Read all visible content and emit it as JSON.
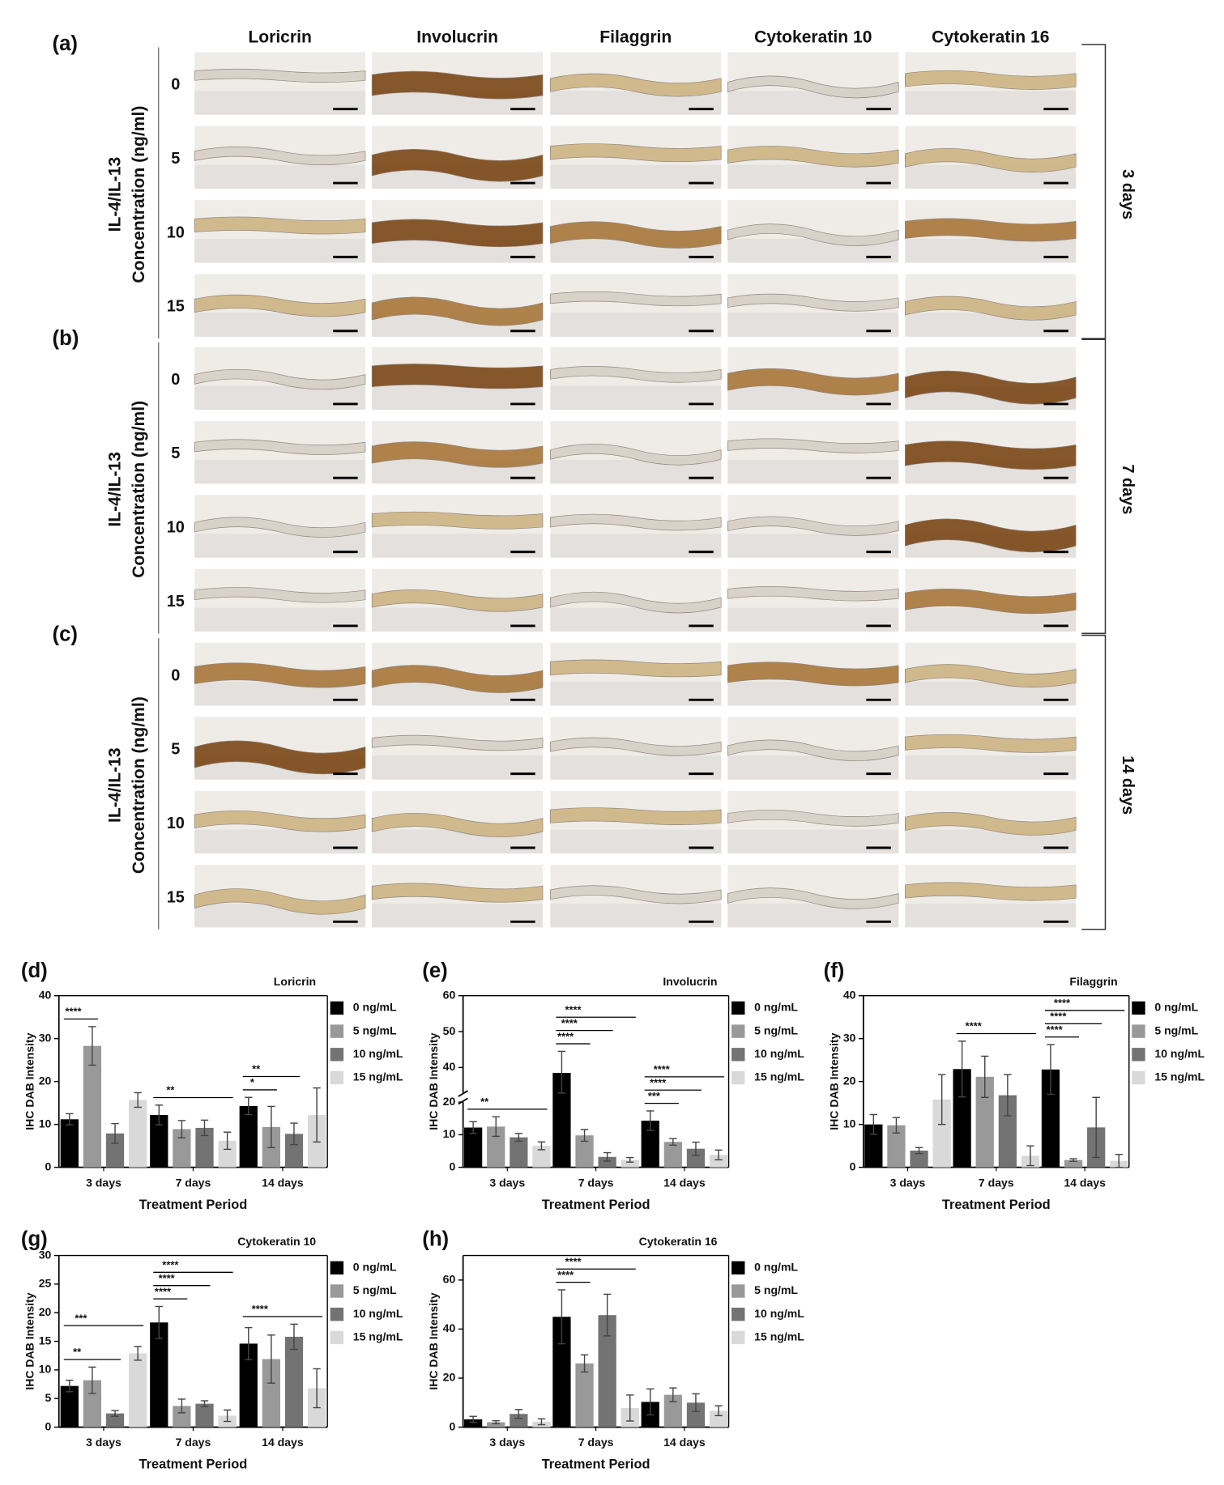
{
  "figure": {
    "panels": [
      {
        "label": "(a)",
        "time": "3 days"
      },
      {
        "label": "(b)",
        "time": "7 days"
      },
      {
        "label": "(c)",
        "time": "14 days"
      }
    ],
    "columns": [
      "Loricrin",
      "Involucrin",
      "Filaggrin",
      "Cytokeratin 10",
      "Cytokeratin 16"
    ],
    "rows": [
      "0",
      "5",
      "10",
      "15"
    ],
    "ylabel_line1": "IL-4/IL-13",
    "ylabel_line2": "Concentration (ng/ml)"
  },
  "chart_data": [
    {
      "type": "bar",
      "panel": "(d)",
      "title": "Loricrin",
      "categories": [
        "3 days",
        "7 days",
        "14 days"
      ],
      "xlabel": "Treatment Period",
      "ylabel": "IHC DAB Intensity",
      "ylim": [
        0,
        40
      ],
      "yticks": [
        0,
        10,
        20,
        30,
        40
      ],
      "series": [
        {
          "name": "0 ng/mL",
          "color": "#000000",
          "values": [
            11.2,
            12.2,
            14.3
          ],
          "errors": [
            1.3,
            2.3,
            2.0
          ]
        },
        {
          "name": "5 ng/mL",
          "color": "#999999",
          "values": [
            28.3,
            8.9,
            9.4
          ],
          "errors": [
            4.5,
            2.0,
            4.8
          ]
        },
        {
          "name": "10 ng/mL",
          "color": "#737373",
          "values": [
            7.9,
            9.2,
            7.8
          ],
          "errors": [
            2.3,
            1.8,
            2.5
          ]
        },
        {
          "name": "15 ng/mL",
          "color": "#d9d9d9",
          "values": [
            15.7,
            6.2,
            12.2
          ],
          "errors": [
            1.7,
            2.0,
            6.3
          ]
        }
      ],
      "annotations": [
        "****",
        "**",
        "*",
        "**"
      ]
    },
    {
      "type": "bar",
      "panel": "(e)",
      "title": "Involucrin",
      "categories": [
        "3 days",
        "7 days",
        "14 days"
      ],
      "xlabel": "Treatment Period",
      "ylabel": "IHC DAB Intensity",
      "ylim": [
        0,
        60
      ],
      "yticks": [
        0,
        10,
        20,
        40,
        50,
        60
      ],
      "axis_break": [
        20,
        33
      ],
      "series": [
        {
          "name": "0 ng/mL",
          "color": "#000000",
          "values": [
            12.2,
            38.5,
            14.3
          ],
          "errors": [
            1.8,
            6.0,
            3.0
          ]
        },
        {
          "name": "5 ng/mL",
          "color": "#999999",
          "values": [
            12.5,
            9.8,
            7.8
          ],
          "errors": [
            3.0,
            1.8,
            1.0
          ]
        },
        {
          "name": "10 ng/mL",
          "color": "#737373",
          "values": [
            9.2,
            3.2,
            5.7
          ],
          "errors": [
            1.2,
            1.3,
            2.0
          ]
        },
        {
          "name": "15 ng/mL",
          "color": "#d9d9d9",
          "values": [
            6.6,
            2.3,
            3.8
          ],
          "errors": [
            1.2,
            0.7,
            1.5
          ]
        }
      ],
      "annotations": [
        "**",
        "****",
        "****",
        "****",
        "***",
        "****",
        "****"
      ]
    },
    {
      "type": "bar",
      "panel": "(f)",
      "title": "Filaggrin",
      "categories": [
        "3 days",
        "7 days",
        "14 days"
      ],
      "xlabel": "Treatment Period",
      "ylabel": "IHC DAB Intensity",
      "ylim": [
        0,
        40
      ],
      "yticks": [
        0,
        10,
        20,
        30,
        40
      ],
      "series": [
        {
          "name": "0 ng/mL",
          "color": "#000000",
          "values": [
            10.0,
            22.9,
            22.8
          ],
          "errors": [
            2.3,
            6.5,
            5.8
          ]
        },
        {
          "name": "5 ng/mL",
          "color": "#999999",
          "values": [
            9.8,
            21.1,
            1.7
          ],
          "errors": [
            1.8,
            4.8,
            0.3
          ]
        },
        {
          "name": "10 ng/mL",
          "color": "#737373",
          "values": [
            3.9,
            16.8,
            9.3
          ],
          "errors": [
            0.7,
            4.8,
            7.0
          ]
        },
        {
          "name": "15 ng/mL",
          "color": "#d9d9d9",
          "values": [
            15.8,
            2.7,
            1.5
          ],
          "errors": [
            5.8,
            2.3,
            1.5
          ]
        }
      ],
      "annotations": [
        "****",
        "****",
        "****",
        "****"
      ]
    },
    {
      "type": "bar",
      "panel": "(g)",
      "title": "Cytokeratin 10",
      "categories": [
        "3 days",
        "7 days",
        "14 days"
      ],
      "xlabel": "Treatment Period",
      "ylabel": "IHC DAB Intensity",
      "ylim": [
        0,
        30
      ],
      "yticks": [
        0,
        5,
        10,
        15,
        20,
        25,
        30
      ],
      "series": [
        {
          "name": "0 ng/mL",
          "color": "#000000",
          "values": [
            7.2,
            18.3,
            14.6
          ],
          "errors": [
            1.0,
            2.8,
            2.8
          ]
        },
        {
          "name": "5 ng/mL",
          "color": "#999999",
          "values": [
            8.2,
            3.7,
            11.9
          ],
          "errors": [
            2.3,
            1.2,
            4.2
          ]
        },
        {
          "name": "10 ng/mL",
          "color": "#737373",
          "values": [
            2.4,
            4.1,
            15.8
          ],
          "errors": [
            0.5,
            0.5,
            2.2
          ]
        },
        {
          "name": "15 ng/mL",
          "color": "#d9d9d9",
          "values": [
            12.9,
            2.0,
            6.8
          ],
          "errors": [
            1.2,
            1.0,
            3.4
          ]
        }
      ],
      "annotations": [
        "**",
        "***",
        "****",
        "****",
        "****",
        "****"
      ]
    },
    {
      "type": "bar",
      "panel": "(h)",
      "title": "Cytokeratin 16",
      "categories": [
        "3 days",
        "7 days",
        "14 days"
      ],
      "xlabel": "Treatment Period",
      "ylabel": "IHC DAB Intensity",
      "ylim": [
        0,
        70
      ],
      "yticks": [
        0,
        20,
        40,
        60
      ],
      "series": [
        {
          "name": "0 ng/mL",
          "color": "#000000",
          "values": [
            3.2,
            45.0,
            10.3
          ],
          "errors": [
            1.2,
            11.0,
            5.3
          ]
        },
        {
          "name": "5 ng/mL",
          "color": "#999999",
          "values": [
            2.0,
            26.0,
            13.2
          ],
          "errors": [
            0.6,
            3.5,
            2.8
          ]
        },
        {
          "name": "10 ng/mL",
          "color": "#737373",
          "values": [
            5.4,
            45.7,
            10.0
          ],
          "errors": [
            1.8,
            8.5,
            3.6
          ]
        },
        {
          "name": "15 ng/mL",
          "color": "#d9d9d9",
          "values": [
            2.2,
            7.8,
            6.7
          ],
          "errors": [
            1.2,
            5.3,
            2.0
          ]
        }
      ],
      "annotations": [
        "****",
        "****"
      ]
    }
  ]
}
